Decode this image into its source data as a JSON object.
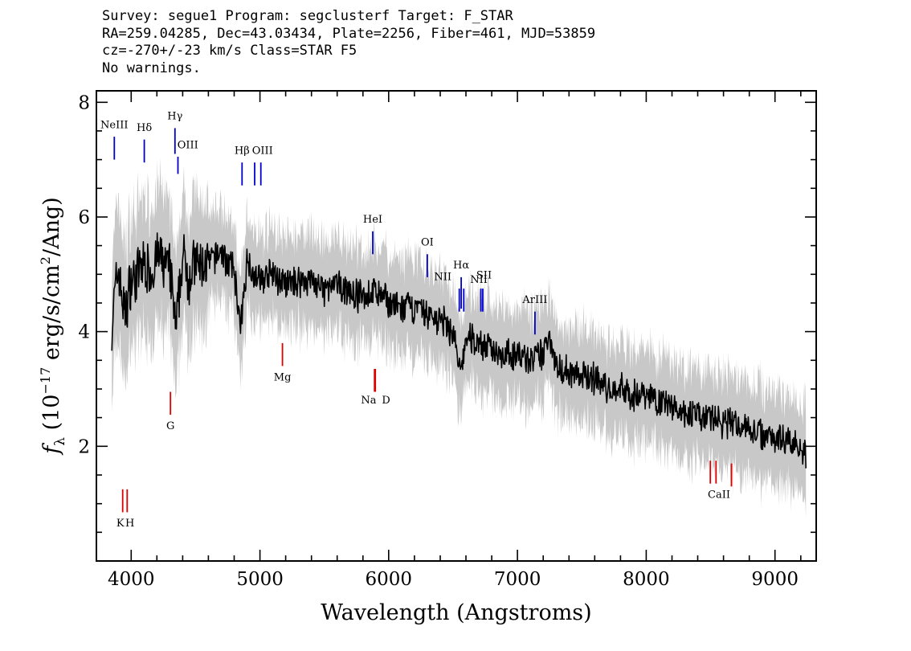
{
  "header": {
    "line1": "Survey: segue1 Program: segclusterf Target: F_STAR",
    "line2": "RA=259.04285, Dec=43.03434, Plate=2256, Fiber=461, MJD=53859",
    "line3": "cz=-270+/-23 km/s Class=STAR F5",
    "line4": "No warnings."
  },
  "chart_data": {
    "type": "line",
    "xlabel": "Wavelength (Angstroms)",
    "ylabel": "f_λ (10^-17 erg/s/cm^2/Ang)",
    "xlim": [
      3730,
      9320
    ],
    "ylim": [
      0,
      8.2
    ],
    "xticks": [
      4000,
      5000,
      6000,
      7000,
      8000,
      9000
    ],
    "yticks": [
      2,
      4,
      6,
      8
    ],
    "grid": false,
    "colors": {
      "spectrum": "#000000",
      "error_band": "#c8c8c8",
      "emission_lines": "#0000cc",
      "absorption_lines": "#dd0000"
    },
    "series": [
      {
        "name": "",
        "x": [
          3850,
          3900,
          3950,
          4000,
          4050,
          4100,
          4150,
          4200,
          4250,
          4300,
          4350,
          4400,
          4450,
          4500,
          4550,
          4600,
          4650,
          4700,
          4750,
          4800,
          4850,
          4900,
          4950,
          5000,
          5100,
          5200,
          5300,
          5400,
          5500,
          5600,
          5700,
          5800,
          5900,
          6000,
          6100,
          6200,
          6300,
          6400,
          6500,
          6560,
          6600,
          6700,
          6800,
          6900,
          7000,
          7100,
          7200,
          7250,
          7300,
          7400,
          7500,
          7600,
          7700,
          7800,
          7900,
          8000,
          8100,
          8200,
          8300,
          8400,
          8500,
          8600,
          8700,
          8800,
          8900,
          9000,
          9100,
          9200,
          9240
        ],
        "values": [
          4.2,
          5.1,
          4.3,
          4.9,
          5.0,
          5.2,
          5.0,
          5.3,
          5.2,
          5.1,
          4.0,
          5.3,
          5.0,
          5.2,
          5.1,
          5.2,
          5.3,
          5.4,
          5.2,
          5.1,
          4.0,
          5.3,
          5.0,
          4.9,
          5.0,
          4.8,
          4.9,
          4.9,
          4.7,
          4.8,
          4.7,
          4.6,
          4.7,
          4.5,
          4.4,
          4.4,
          4.3,
          4.2,
          4.0,
          3.2,
          3.9,
          3.8,
          3.7,
          3.6,
          3.6,
          3.5,
          3.6,
          4.0,
          3.4,
          3.3,
          3.2,
          3.2,
          3.0,
          3.0,
          2.9,
          2.9,
          2.8,
          2.7,
          2.6,
          2.5,
          2.5,
          2.4,
          2.4,
          2.3,
          2.2,
          2.2,
          2.1,
          2.0,
          1.9
        ]
      }
    ],
    "features": {
      "labels_top": [
        "NeIII",
        "Hδ",
        "Hγ",
        "OIII",
        "Hβ",
        "OIII",
        "HeI",
        "OI",
        "NII",
        "Hα",
        "NII",
        "SII",
        "ArIII"
      ],
      "labels_bottom": [
        "K",
        "H",
        "G",
        "Mg",
        "Na",
        "D",
        "CaII"
      ]
    }
  }
}
